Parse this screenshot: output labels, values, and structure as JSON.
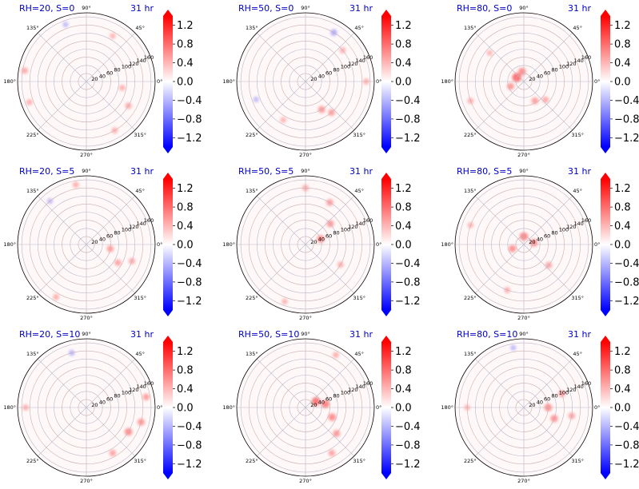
{
  "colors": {
    "title": "#0000cc",
    "positive": "#ff0000",
    "negative": "#0000ff",
    "grid": "#b0b0b0",
    "frame": "#000000"
  },
  "colorbar": {
    "ticks": [
      "1.2",
      "0.8",
      "0.4",
      "0.0",
      "−0.4",
      "−0.8",
      "−1.2"
    ],
    "tick_values": [
      1.2,
      0.8,
      0.4,
      0.0,
      -0.4,
      -0.8,
      -1.2
    ],
    "vmin": -1.4,
    "vmax": 1.4,
    "extend": "both",
    "colormap": "bwr"
  },
  "chart_data": [
    {
      "type": "heatmap",
      "projection": "polar",
      "label": "RH=20, S=0",
      "time": "31 hr",
      "r_ticks": [
        "20",
        "40",
        "60",
        "80",
        "100",
        "120",
        "140",
        "160"
      ],
      "theta_ticks": [
        "0°",
        "45°",
        "90°",
        "135°",
        "180°",
        "225°",
        "270°",
        "315°"
      ],
      "blobs": [
        {
          "r": 150,
          "theta": 200,
          "v": 0.3
        },
        {
          "r": 155,
          "theta": 170,
          "v": 0.35
        },
        {
          "r": 140,
          "theta": 300,
          "v": 0.3
        },
        {
          "r": 120,
          "theta": 330,
          "v": 0.35
        },
        {
          "r": 90,
          "theta": 350,
          "v": 0.3
        },
        {
          "r": 150,
          "theta": 110,
          "v": -0.2
        },
        {
          "r": 130,
          "theta": 60,
          "v": 0.25
        }
      ]
    },
    {
      "type": "heatmap",
      "projection": "polar",
      "label": "RH=50, S=0",
      "time": "31 hr",
      "r_ticks": [
        "20",
        "40",
        "60",
        "80",
        "100",
        "120",
        "140",
        "160"
      ],
      "theta_ticks": [
        "0°",
        "45°",
        "90°",
        "135°",
        "180°",
        "225°",
        "270°",
        "315°"
      ],
      "blobs": [
        {
          "r": 80,
          "theta": 300,
          "v": 0.5
        },
        {
          "r": 100,
          "theta": 310,
          "v": 0.45
        },
        {
          "r": 140,
          "theta": 60,
          "v": -0.35
        },
        {
          "r": 120,
          "theta": 40,
          "v": 0.3
        },
        {
          "r": 150,
          "theta": 0,
          "v": 0.3
        },
        {
          "r": 130,
          "theta": 200,
          "v": -0.2
        },
        {
          "r": 110,
          "theta": 240,
          "v": 0.25
        }
      ]
    },
    {
      "type": "heatmap",
      "projection": "polar",
      "label": "RH=80, S=0",
      "time": "31 hr",
      "r_ticks": [
        "20",
        "40",
        "60",
        "80",
        "100",
        "120",
        "140",
        "160"
      ],
      "theta_ticks": [
        "0°",
        "45°",
        "90°",
        "135°",
        "180°",
        "225°",
        "270°",
        "315°"
      ],
      "blobs": [
        {
          "r": 20,
          "theta": 150,
          "v": 0.9
        },
        {
          "r": 25,
          "theta": 100,
          "v": 0.6
        },
        {
          "r": 35,
          "theta": 200,
          "v": 0.5
        },
        {
          "r": 55,
          "theta": 300,
          "v": 0.45
        },
        {
          "r": 70,
          "theta": 320,
          "v": 0.35
        },
        {
          "r": 110,
          "theta": 140,
          "v": 0.25
        },
        {
          "r": 140,
          "theta": 200,
          "v": 0.3
        }
      ]
    },
    {
      "type": "heatmap",
      "projection": "polar",
      "label": "RH=20, S=5",
      "time": "31 hr",
      "r_ticks": [
        "20",
        "40",
        "60",
        "80",
        "100",
        "120",
        "140",
        "160"
      ],
      "theta_ticks": [
        "0°",
        "45°",
        "90°",
        "135°",
        "180°",
        "225°",
        "270°",
        "315°"
      ],
      "blobs": [
        {
          "r": 60,
          "theta": 350,
          "v": 0.45
        },
        {
          "r": 90,
          "theta": 330,
          "v": 0.4
        },
        {
          "r": 120,
          "theta": 340,
          "v": 0.35
        },
        {
          "r": 150,
          "theta": 100,
          "v": 0.3
        },
        {
          "r": 150,
          "theta": 240,
          "v": 0.3
        },
        {
          "r": 140,
          "theta": 130,
          "v": -0.2
        }
      ]
    },
    {
      "type": "heatmap",
      "projection": "polar",
      "label": "RH=50, S=5",
      "time": "31 hr",
      "r_ticks": [
        "20",
        "40",
        "60",
        "80",
        "100",
        "120",
        "140",
        "160"
      ],
      "theta_ticks": [
        "0°",
        "45°",
        "90°",
        "135°",
        "180°",
        "225°",
        "270°",
        "315°"
      ],
      "blobs": [
        {
          "r": 40,
          "theta": 20,
          "v": 0.6
        },
        {
          "r": 80,
          "theta": 40,
          "v": 0.5
        },
        {
          "r": 120,
          "theta": 60,
          "v": 0.45
        },
        {
          "r": 140,
          "theta": 90,
          "v": 0.35
        },
        {
          "r": 100,
          "theta": 330,
          "v": 0.3
        },
        {
          "r": 150,
          "theta": 250,
          "v": 0.25
        }
      ]
    },
    {
      "type": "heatmap",
      "projection": "polar",
      "label": "RH=80, S=5",
      "time": "31 hr",
      "r_ticks": [
        "20",
        "40",
        "60",
        "80",
        "100",
        "120",
        "140",
        "160"
      ],
      "theta_ticks": [
        "0°",
        "45°",
        "90°",
        "135°",
        "180°",
        "225°",
        "270°",
        "315°"
      ],
      "blobs": [
        {
          "r": 20,
          "theta": 90,
          "v": 0.7
        },
        {
          "r": 25,
          "theta": 10,
          "v": 0.6
        },
        {
          "r": 30,
          "theta": 200,
          "v": 0.55
        },
        {
          "r": 80,
          "theta": 320,
          "v": 0.4
        },
        {
          "r": 120,
          "theta": 250,
          "v": 0.3
        },
        {
          "r": 140,
          "theta": 160,
          "v": 0.25
        }
      ]
    },
    {
      "type": "heatmap",
      "projection": "polar",
      "label": "RH=20, S=10",
      "time": "31 hr",
      "r_ticks": [
        "20",
        "40",
        "60",
        "80",
        "100",
        "120",
        "140",
        "160"
      ],
      "theta_ticks": [
        "0°",
        "45°",
        "90°",
        "135°",
        "180°",
        "225°",
        "270°",
        "315°"
      ],
      "blobs": [
        {
          "r": 120,
          "theta": 330,
          "v": 0.6
        },
        {
          "r": 140,
          "theta": 345,
          "v": 0.5
        },
        {
          "r": 150,
          "theta": 10,
          "v": 0.45
        },
        {
          "r": 130,
          "theta": 300,
          "v": 0.4
        },
        {
          "r": 150,
          "theta": 180,
          "v": 0.3
        },
        {
          "r": 140,
          "theta": 105,
          "v": -0.25
        }
      ]
    },
    {
      "type": "heatmap",
      "projection": "polar",
      "label": "RH=50, S=10",
      "time": "31 hr",
      "r_ticks": [
        "20",
        "40",
        "60",
        "80",
        "100",
        "120",
        "140",
        "160"
      ],
      "theta_ticks": [
        "0°",
        "45°",
        "90°",
        "135°",
        "180°",
        "225°",
        "270°",
        "315°"
      ],
      "blobs": [
        {
          "r": 30,
          "theta": 30,
          "v": 0.8
        },
        {
          "r": 50,
          "theta": 10,
          "v": 0.7
        },
        {
          "r": 70,
          "theta": 340,
          "v": 0.6
        },
        {
          "r": 100,
          "theta": 320,
          "v": 0.5
        },
        {
          "r": 130,
          "theta": 300,
          "v": 0.4
        },
        {
          "r": 150,
          "theta": 60,
          "v": 0.3
        }
      ]
    },
    {
      "type": "heatmap",
      "projection": "polar",
      "label": "RH=80, S=10",
      "time": "31 hr",
      "r_ticks": [
        "20",
        "40",
        "60",
        "80",
        "100",
        "120",
        "140",
        "160"
      ],
      "theta_ticks": [
        "0°",
        "45°",
        "90°",
        "135°",
        "180°",
        "225°",
        "270°",
        "315°"
      ],
      "blobs": [
        {
          "r": 60,
          "theta": 0,
          "v": 0.6
        },
        {
          "r": 80,
          "theta": 340,
          "v": 0.55
        },
        {
          "r": 100,
          "theta": 20,
          "v": 0.45
        },
        {
          "r": 120,
          "theta": 350,
          "v": 0.4
        },
        {
          "r": 140,
          "theta": 180,
          "v": 0.25
        },
        {
          "r": 150,
          "theta": 100,
          "v": -0.2
        }
      ]
    }
  ]
}
